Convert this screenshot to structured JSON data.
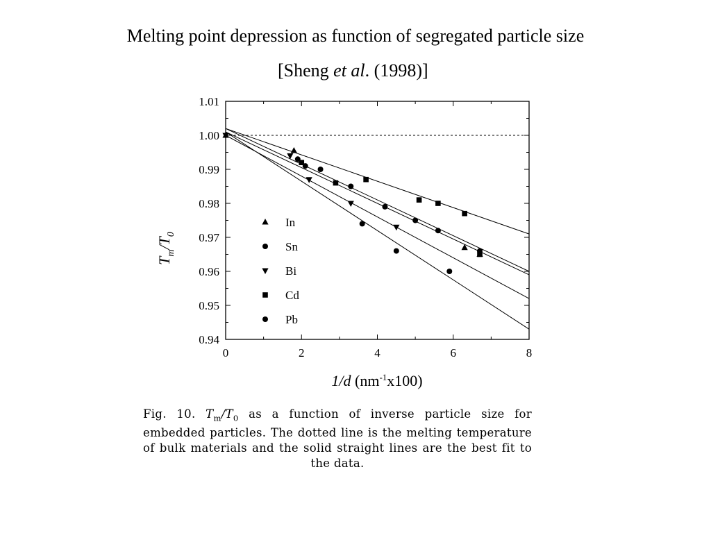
{
  "slide": {
    "title": "Melting point depression as function of segregated particle size",
    "citation_author": "[Sheng ",
    "citation_etal": "et al",
    "citation_year": ". (1998)]"
  },
  "caption": {
    "prefix": "Fig. 10. ",
    "tm_t": "T",
    "tm_sub": "m",
    "slash_t": "/T",
    "t0_sub": "0",
    "body": " as a function of inverse particle size for embedded particles. The dotted line is the melting temperature of bulk materials and the solid straight lines are the best fit to the data."
  },
  "chart_data": {
    "type": "scatter",
    "xlabel_italic": "1/d",
    "xlabel_rest": " (nm",
    "xlabel_sup": "-1",
    "xlabel_end": "x100)",
    "ylabel_T": "T",
    "ylabel_m": "m",
    "ylabel_slash": "/T",
    "ylabel_0": "0",
    "xlim": [
      0,
      8
    ],
    "ylim": [
      0.94,
      1.01
    ],
    "x_ticks": [
      0,
      2,
      4,
      6,
      8
    ],
    "y_ticks": [
      1.01,
      1.0,
      0.99,
      0.98,
      0.97,
      0.96,
      0.95,
      0.94
    ],
    "y_tick_labels": [
      "1.01",
      "1.00",
      "0.99",
      "0.98",
      "0.97",
      "0.96",
      "0.95",
      "0.94"
    ],
    "reference_line": 1.0,
    "legend_position": "middle-left",
    "series": [
      {
        "name": "In",
        "marker": "triangle-up",
        "points": [
          [
            0,
            1.0
          ],
          [
            1.8,
            0.9955
          ],
          [
            6.3,
            0.967
          ],
          [
            6.7,
            0.965
          ]
        ]
      },
      {
        "name": "Sn",
        "marker": "circle",
        "points": [
          [
            2.1,
            0.991
          ],
          [
            3.3,
            0.985
          ],
          [
            4.2,
            0.979
          ],
          [
            5.0,
            0.975
          ],
          [
            5.6,
            0.972
          ],
          [
            6.7,
            0.966
          ]
        ]
      },
      {
        "name": "Bi",
        "marker": "triangle-down",
        "points": [
          [
            0,
            1.0
          ],
          [
            1.7,
            0.994
          ],
          [
            2.2,
            0.987
          ],
          [
            3.3,
            0.98
          ],
          [
            4.5,
            0.973
          ]
        ]
      },
      {
        "name": "Cd",
        "marker": "square",
        "points": [
          [
            2.0,
            0.992
          ],
          [
            2.9,
            0.986
          ],
          [
            3.7,
            0.987
          ],
          [
            5.1,
            0.981
          ],
          [
            5.6,
            0.98
          ],
          [
            6.3,
            0.977
          ],
          [
            6.7,
            0.965
          ]
        ]
      },
      {
        "name": "Pb",
        "marker": "circle",
        "points": [
          [
            1.9,
            0.993
          ],
          [
            2.5,
            0.99
          ],
          [
            3.6,
            0.974
          ],
          [
            4.5,
            0.966
          ],
          [
            5.9,
            0.96
          ]
        ]
      }
    ],
    "fit_lines": [
      {
        "from": [
          0,
          1.002
        ],
        "to": [
          8,
          0.971
        ]
      },
      {
        "from": [
          0,
          1.002
        ],
        "to": [
          8,
          0.96
        ]
      },
      {
        "from": [
          0,
          1.001
        ],
        "to": [
          8,
          0.959
        ]
      },
      {
        "from": [
          0,
          1.0
        ],
        "to": [
          8,
          0.952
        ]
      },
      {
        "from": [
          0,
          1.001
        ],
        "to": [
          8,
          0.943
        ]
      }
    ]
  }
}
